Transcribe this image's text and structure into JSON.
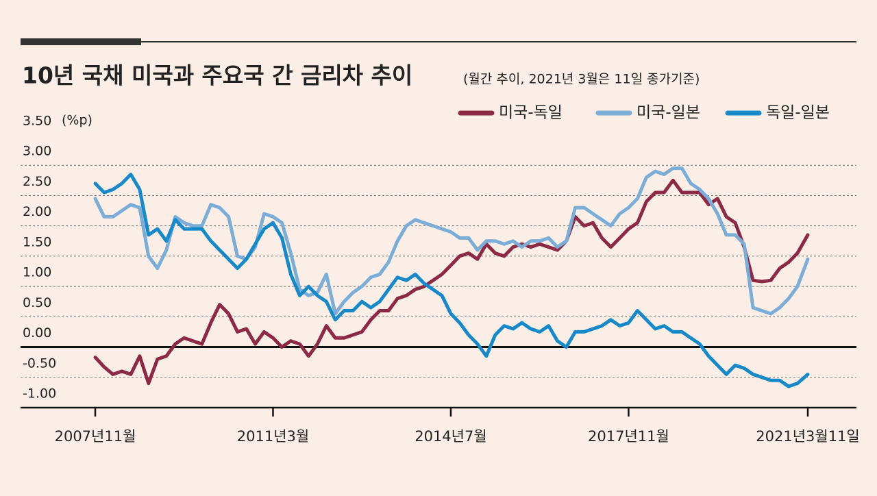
{
  "chart_data": {
    "type": "line",
    "title": "10년 국채 미국과 주요국 간 금리차 추이",
    "subtitle": "(월간 추이, 2021년 3월은 11일 종가기준)",
    "ylabel": "(%p)",
    "ylim": [
      -1,
      3.5
    ],
    "yticks": [
      {
        "value": 3.5,
        "label": "3.50"
      },
      {
        "value": 3,
        "label": "3.00"
      },
      {
        "value": 2.5,
        "label": "2.50"
      },
      {
        "value": 2,
        "label": "2.00"
      },
      {
        "value": 1.5,
        "label": "1.50"
      },
      {
        "value": 1,
        "label": "1.00"
      },
      {
        "value": 0.5,
        "label": "0.50"
      },
      {
        "value": 0,
        "label": "0.00"
      },
      {
        "value": -0.5,
        "label": "-0.50"
      },
      {
        "value": -1,
        "label": "-1.00"
      }
    ],
    "xlim": [
      "2007-11",
      "2021-03-11"
    ],
    "xticks": [
      {
        "value": "2007-11",
        "label": "2007년11월"
      },
      {
        "value": "2011-03",
        "label": "2011년3월"
      },
      {
        "value": "2014-07",
        "label": "2014년7월"
      },
      {
        "value": "2017-11",
        "label": "2017년11월"
      },
      {
        "value": "2021-03-11",
        "label": "2021년3월11일"
      }
    ],
    "grid": true,
    "legend": "top-right",
    "x": [
      "2007-11",
      "2008-01",
      "2008-03",
      "2008-05",
      "2008-07",
      "2008-09",
      "2008-11",
      "2009-01",
      "2009-03",
      "2009-05",
      "2009-07",
      "2009-09",
      "2009-11",
      "2010-01",
      "2010-03",
      "2010-05",
      "2010-07",
      "2010-09",
      "2010-11",
      "2011-01",
      "2011-03",
      "2011-05",
      "2011-07",
      "2011-09",
      "2011-11",
      "2012-01",
      "2012-03",
      "2012-05",
      "2012-07",
      "2012-09",
      "2012-11",
      "2013-01",
      "2013-03",
      "2013-05",
      "2013-07",
      "2013-09",
      "2013-11",
      "2014-01",
      "2014-03",
      "2014-05",
      "2014-07",
      "2014-09",
      "2014-11",
      "2015-01",
      "2015-03",
      "2015-05",
      "2015-07",
      "2015-09",
      "2015-11",
      "2016-01",
      "2016-03",
      "2016-05",
      "2016-07",
      "2016-09",
      "2016-11",
      "2017-01",
      "2017-03",
      "2017-05",
      "2017-07",
      "2017-09",
      "2017-11",
      "2018-01",
      "2018-03",
      "2018-05",
      "2018-07",
      "2018-09",
      "2018-11",
      "2019-01",
      "2019-03",
      "2019-05",
      "2019-07",
      "2019-09",
      "2019-11",
      "2020-01",
      "2020-03",
      "2020-05",
      "2020-07",
      "2020-09",
      "2020-11",
      "2021-01",
      "2021-03-11"
    ],
    "series": [
      {
        "name": "미국-독일",
        "color": "#8c2944",
        "values": [
          -0.17,
          -0.33,
          -0.45,
          -0.4,
          -0.45,
          -0.15,
          -0.6,
          -0.2,
          -0.15,
          0.05,
          0.15,
          0.1,
          0.05,
          0.4,
          0.7,
          0.55,
          0.25,
          0.3,
          0.05,
          0.25,
          0.15,
          0.0,
          0.1,
          0.05,
          -0.15,
          0.05,
          0.35,
          0.15,
          0.15,
          0.2,
          0.25,
          0.45,
          0.6,
          0.6,
          0.8,
          0.85,
          0.95,
          1.0,
          1.1,
          1.2,
          1.35,
          1.5,
          1.55,
          1.45,
          1.7,
          1.55,
          1.5,
          1.65,
          1.7,
          1.65,
          1.7,
          1.65,
          1.6,
          1.75,
          2.15,
          2.0,
          2.05,
          1.8,
          1.65,
          1.8,
          1.95,
          2.05,
          2.4,
          2.55,
          2.55,
          2.75,
          2.55,
          2.55,
          2.55,
          2.35,
          2.45,
          2.15,
          2.05,
          1.65,
          1.1,
          1.08,
          1.1,
          1.3,
          1.4,
          1.55,
          1.85
        ]
      },
      {
        "name": "미국-일본",
        "color": "#7badd6",
        "values": [
          2.45,
          2.15,
          2.15,
          2.25,
          2.35,
          2.3,
          1.5,
          1.3,
          1.6,
          2.15,
          2.05,
          2.0,
          2.0,
          2.35,
          2.3,
          2.15,
          1.5,
          1.45,
          1.65,
          2.2,
          2.15,
          2.05,
          1.55,
          0.95,
          0.85,
          0.9,
          1.2,
          0.55,
          0.75,
          0.9,
          1.0,
          1.15,
          1.2,
          1.4,
          1.75,
          2.0,
          2.1,
          2.05,
          2.0,
          1.95,
          1.9,
          1.8,
          1.8,
          1.6,
          1.75,
          1.75,
          1.7,
          1.75,
          1.65,
          1.75,
          1.75,
          1.8,
          1.65,
          1.75,
          2.3,
          2.3,
          2.2,
          2.1,
          2.0,
          2.2,
          2.3,
          2.45,
          2.8,
          2.9,
          2.85,
          2.95,
          2.95,
          2.7,
          2.6,
          2.45,
          2.2,
          1.85,
          1.85,
          1.7,
          0.65,
          0.6,
          0.55,
          0.65,
          0.8,
          1.0,
          1.45
        ]
      },
      {
        "name": "독일-일본",
        "color": "#1789c8",
        "values": [
          2.7,
          2.55,
          2.6,
          2.7,
          2.85,
          2.6,
          1.85,
          1.95,
          1.75,
          2.1,
          1.95,
          1.95,
          1.95,
          1.75,
          1.6,
          1.45,
          1.3,
          1.45,
          1.7,
          1.95,
          2.05,
          1.8,
          1.2,
          0.85,
          1.0,
          0.85,
          0.75,
          0.45,
          0.6,
          0.6,
          0.75,
          0.65,
          0.75,
          0.95,
          1.15,
          1.1,
          1.2,
          1.05,
          0.95,
          0.85,
          0.55,
          0.4,
          0.2,
          0.05,
          -0.15,
          0.2,
          0.35,
          0.3,
          0.4,
          0.3,
          0.25,
          0.35,
          0.1,
          0.0,
          0.25,
          0.25,
          0.3,
          0.35,
          0.45,
          0.35,
          0.4,
          0.6,
          0.45,
          0.3,
          0.35,
          0.25,
          0.25,
          0.15,
          0.05,
          -0.15,
          -0.3,
          -0.45,
          -0.3,
          -0.35,
          -0.45,
          -0.5,
          -0.55,
          -0.55,
          -0.65,
          -0.6,
          -0.45
        ]
      }
    ]
  }
}
